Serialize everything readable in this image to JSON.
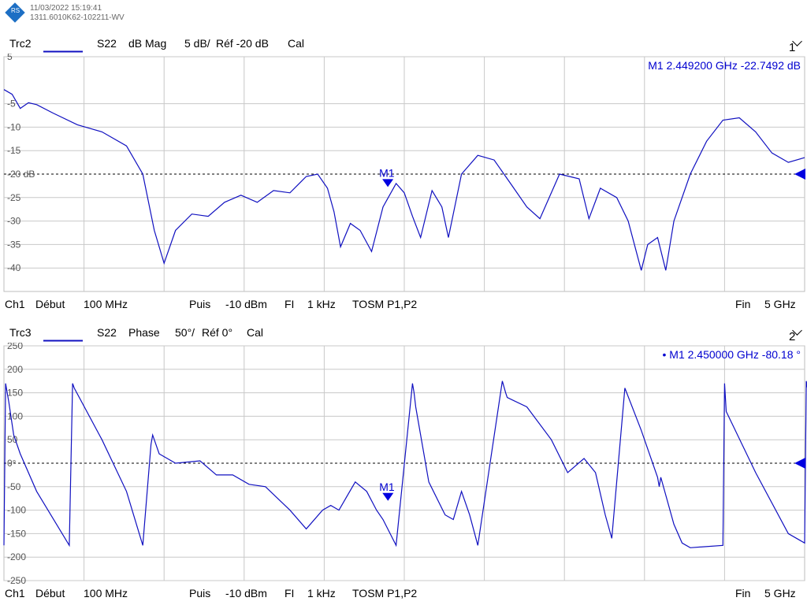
{
  "instrument": {
    "timestamp": "11/03/2022 15:19:41",
    "serial": "1311.6010K62-102211-WV",
    "logo_letters": "RS"
  },
  "colors": {
    "trace": "#1010c0",
    "marker": "#0000e0",
    "grid": "#c8c8c8",
    "ref": "#000000"
  },
  "footer": {
    "channel": "Ch1",
    "start_label": "Début",
    "start_value": "100 MHz",
    "power_label": "Puis",
    "power_value": "-10 dBm",
    "if_label": "FI",
    "if_value": "1 kHz",
    "mode": "TOSM P1,P2",
    "stop_label": "Fin",
    "stop_value": "5 GHz"
  },
  "chart_data": [
    {
      "type": "line",
      "trace": "Trc2",
      "param": "S22",
      "format": "dB Mag",
      "scale": "5 dB/",
      "reference": "Réf -20 dB",
      "cal": "Cal",
      "channel_button": "1",
      "ylim": [
        -45,
        5
      ],
      "y_ticks": [
        "5",
        "-5",
        "-10",
        "-15",
        "-20 dB",
        "-25",
        "-30",
        "-35",
        "-40"
      ],
      "y_tick_values": [
        5,
        -5,
        -10,
        -15,
        -20,
        -25,
        -30,
        -35,
        -40
      ],
      "xlim_ghz": [
        0.1,
        5.0
      ],
      "grid": true,
      "reference_line": -20,
      "marker": {
        "name": "M1",
        "freq_ghz": 2.4492,
        "value": -22.7492,
        "readout": "M1  2.449200  GHz  -22.7492  dB"
      },
      "x_ghz": [
        0.1,
        0.15,
        0.2,
        0.25,
        0.3,
        0.4,
        0.55,
        0.7,
        0.85,
        0.95,
        1.02,
        1.08,
        1.15,
        1.25,
        1.35,
        1.45,
        1.55,
        1.65,
        1.75,
        1.85,
        1.95,
        2.02,
        2.08,
        2.12,
        2.16,
        2.22,
        2.28,
        2.35,
        2.42,
        2.5,
        2.55,
        2.6,
        2.65,
        2.72,
        2.78,
        2.82,
        2.9,
        3.0,
        3.1,
        3.2,
        3.3,
        3.38,
        3.5,
        3.62,
        3.68,
        3.75,
        3.85,
        3.92,
        4.0,
        4.04,
        4.1,
        4.15,
        4.2,
        4.3,
        4.4,
        4.5,
        4.6,
        4.7,
        4.8,
        4.9,
        5.0
      ],
      "y_db": [
        -2,
        -3,
        -6,
        -4.8,
        -5.2,
        -7,
        -9.5,
        -11,
        -14,
        -20,
        -32,
        -39,
        -32,
        -28.5,
        -29,
        -26,
        -24.5,
        -26,
        -23.5,
        -24,
        -20.5,
        -20,
        -23,
        -28,
        -35.5,
        -30.5,
        -32,
        -36.5,
        -27,
        -22,
        -24,
        -29,
        -33.5,
        -23.5,
        -27,
        -33.5,
        -20,
        -16,
        -17,
        -22,
        -27,
        -29.5,
        -20,
        -21,
        -29.5,
        -23,
        -25,
        -30,
        -40.5,
        -35,
        -33.5,
        -40.5,
        -30,
        -20,
        -13,
        -8.5,
        -8,
        -11,
        -15.5,
        -17.5,
        -16.5
      ]
    },
    {
      "type": "line",
      "trace": "Trc3",
      "param": "S22",
      "format": "Phase",
      "scale": "50°/",
      "reference": "Réf 0°",
      "cal": "Cal",
      "channel_button": "2",
      "ylim": [
        -250,
        250
      ],
      "y_ticks": [
        "250",
        "200",
        "150",
        "100",
        "50",
        "0°",
        "-50",
        "-100",
        "-150",
        "-200",
        "-250"
      ],
      "y_tick_values": [
        250,
        200,
        150,
        100,
        50,
        0,
        -50,
        -100,
        -150,
        -200,
        -250
      ],
      "xlim_ghz": [
        0.1,
        5.0
      ],
      "grid": true,
      "reference_line": 0,
      "marker": {
        "name": "M1",
        "freq_ghz": 2.45,
        "value": -80.18,
        "readout": "• M1  2.450000  GHz  -80.18  °"
      },
      "x_ghz": [
        0.1,
        0.11,
        0.13,
        0.16,
        0.2,
        0.3,
        0.5,
        0.52,
        0.53,
        0.7,
        0.85,
        0.95,
        1.0,
        1.01,
        1.05,
        1.15,
        1.3,
        1.4,
        1.5,
        1.6,
        1.7,
        1.85,
        1.95,
        2.05,
        2.1,
        2.15,
        2.2,
        2.25,
        2.32,
        2.38,
        2.42,
        2.5,
        2.6,
        2.61,
        2.62,
        2.7,
        2.8,
        2.85,
        2.9,
        2.95,
        3.0,
        3.15,
        3.17,
        3.18,
        3.3,
        3.45,
        3.55,
        3.65,
        3.72,
        3.78,
        3.82,
        3.9,
        4.0,
        4.1,
        4.11,
        4.12,
        4.2,
        4.25,
        4.3,
        4.5,
        4.51,
        4.52,
        4.7,
        4.9,
        5.0,
        5.01,
        5.05
      ],
      "y_deg": [
        -175,
        170,
        130,
        60,
        20,
        -60,
        -175,
        170,
        160,
        50,
        -60,
        -175,
        40,
        60,
        20,
        0,
        5,
        -25,
        -25,
        -45,
        -50,
        -100,
        -140,
        -100,
        -90,
        -100,
        -70,
        -40,
        -60,
        -100,
        -120,
        -175,
        170,
        150,
        120,
        -40,
        -110,
        -120,
        -60,
        -110,
        -175,
        175,
        150,
        140,
        120,
        50,
        -20,
        10,
        -20,
        -110,
        -160,
        160,
        70,
        -30,
        -50,
        -30,
        -130,
        -170,
        -180,
        -175,
        170,
        110,
        -20,
        -150,
        -170,
        175,
        90
      ]
    }
  ]
}
